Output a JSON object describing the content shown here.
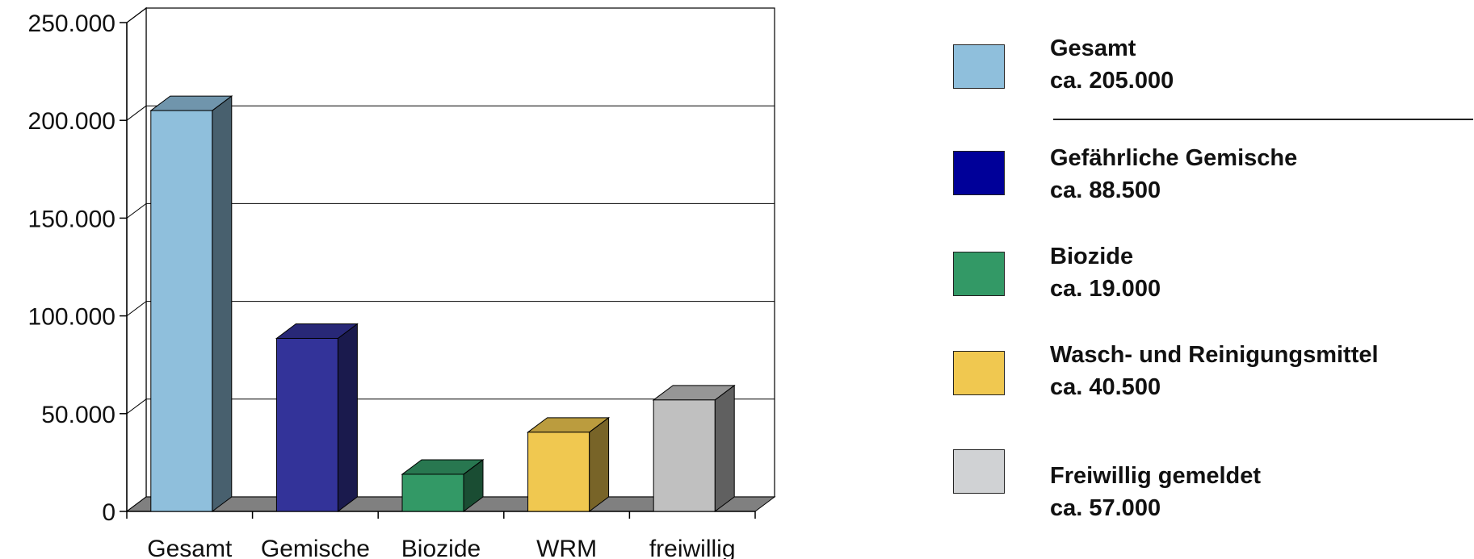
{
  "chart_data": {
    "type": "bar",
    "categories": [
      "Gesamt",
      "Gemische",
      "Biozide",
      "WRM",
      "freiwillig"
    ],
    "values": [
      205000,
      88500,
      19000,
      40500,
      57000
    ],
    "bar_colors": [
      "#8fbfdc",
      "#333399",
      "#339966",
      "#f0c850",
      "#c0c0c0"
    ],
    "y_ticks": [
      "0",
      "50.000",
      "100.000",
      "150.000",
      "200.000",
      "250.000"
    ],
    "ylim": [
      0,
      250000
    ],
    "grid": true,
    "style": "3d-column",
    "legend_placement": "right"
  },
  "legend": [
    {
      "title": "Gesamt",
      "value": "ca. 205.000",
      "color": "#8fbfdc"
    },
    {
      "title": "Gefährliche Gemische",
      "value": "ca. 88.500",
      "color": "#000099"
    },
    {
      "title": "Biozide",
      "value": "ca. 19.000",
      "color": "#339966"
    },
    {
      "title": "Wasch- und Reinigungsmittel",
      "value": "ca. 40.500",
      "color": "#f0c850"
    },
    {
      "title": "Freiwillig gemeldet",
      "value": "ca. 57.000",
      "color": "#d0d2d4"
    }
  ]
}
